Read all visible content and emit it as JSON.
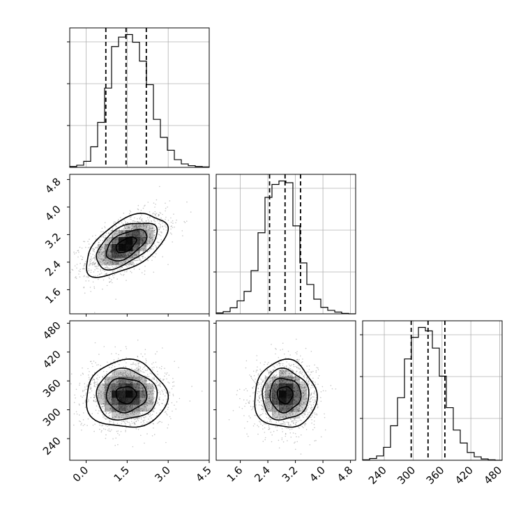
{
  "chart_data": {
    "type": "corner",
    "parameters": [
      "",
      "",
      ""
    ],
    "ranges": [
      [
        -0.6,
        4.5
      ],
      [
        0.9,
        4.95
      ],
      [
        195,
        485
      ]
    ],
    "ticks": [
      {
        "values": [
          0.0,
          1.5,
          3.0,
          4.5
        ],
        "labels": [
          "0.0",
          "1.5",
          "3.0",
          "4.5"
        ]
      },
      {
        "values": [
          1.6,
          2.4,
          3.2,
          4.0,
          4.8
        ],
        "labels": [
          "1.6",
          "2.4",
          "3.2",
          "4.0",
          "4.8"
        ]
      },
      {
        "values": [
          240,
          300,
          360,
          420,
          480
        ],
        "labels": [
          "240",
          "300",
          "360",
          "420",
          "480"
        ]
      }
    ],
    "histograms": [
      {
        "bin_edges": [
          -0.6,
          -0.345,
          -0.09,
          0.165,
          0.42,
          0.675,
          0.93,
          1.185,
          1.44,
          1.695,
          1.95,
          2.205,
          2.46,
          2.715,
          2.97,
          3.225,
          3.48,
          3.735,
          3.99,
          4.245,
          4.5
        ],
        "counts": [
          2,
          5,
          14,
          48,
          105,
          185,
          282,
          304,
          310,
          292,
          248,
          193,
          112,
          70,
          40,
          18,
          8,
          4,
          2,
          1
        ],
        "quantiles": [
          0.72,
          1.46,
          2.2
        ]
      },
      {
        "bin_edges": [
          0.9,
          1.1025,
          1.305,
          1.5075,
          1.71,
          1.9125,
          2.115,
          2.3175,
          2.52,
          2.7225,
          2.925,
          3.1275,
          3.33,
          3.5325,
          3.735,
          3.9375,
          4.14,
          4.3425,
          4.545,
          4.7475,
          4.95
        ],
        "counts": [
          2,
          5,
          14,
          30,
          52,
          100,
          188,
          270,
          300,
          308,
          304,
          204,
          118,
          68,
          34,
          15,
          8,
          4,
          1,
          0
        ],
        "quantiles": [
          2.45,
          2.9,
          3.35
        ]
      },
      {
        "bin_edges": [
          195,
          209.5,
          224,
          238.5,
          253,
          267.5,
          282,
          296.5,
          311,
          325.5,
          340,
          354.5,
          369,
          383.5,
          398,
          412.5,
          427,
          441.5,
          456,
          470.5,
          485
        ],
        "counts": [
          1,
          4,
          10,
          30,
          80,
          145,
          235,
          285,
          308,
          300,
          260,
          195,
          122,
          70,
          40,
          18,
          8,
          3,
          1,
          0
        ],
        "quantiles": [
          296,
          331,
          366
        ]
      }
    ],
    "pairs": [
      {
        "x_param": 0,
        "y_param": 1,
        "mean": [
          1.46,
          2.9
        ],
        "sd": [
          0.74,
          0.45
        ],
        "rho": 0.55,
        "contour_levels": [
          0.5,
          1.0,
          1.5,
          2.0
        ]
      },
      {
        "x_param": 0,
        "y_param": 2,
        "mean": [
          1.46,
          331
        ],
        "sd": [
          0.74,
          35
        ],
        "rho": 0.0,
        "contour_levels": [
          0.5,
          1.0,
          1.5,
          2.0
        ]
      },
      {
        "x_param": 1,
        "y_param": 2,
        "mean": [
          2.9,
          331
        ],
        "sd": [
          0.45,
          35
        ],
        "rho": 0.0,
        "contour_levels": [
          0.5,
          1.0,
          1.5,
          2.0
        ]
      }
    ],
    "grid": true
  }
}
